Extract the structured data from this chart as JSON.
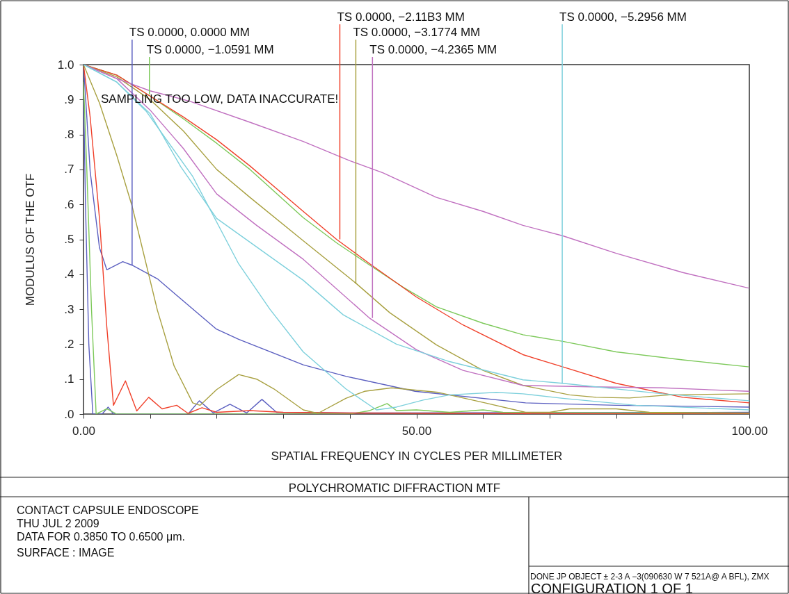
{
  "chart_data": {
    "type": "line",
    "title": "POLYCHROMATIC DIFFRACTION MTF",
    "xlabel": "SPATIAL FREQUENCY IN CYCLES PER MILLIMETER",
    "ylabel": "MODULUS OF THE OTF",
    "xlim": [
      0,
      100
    ],
    "ylim": [
      0,
      1
    ],
    "xticks": [
      {
        "value": 0,
        "label": "0.00"
      },
      {
        "value": 10,
        "label": null
      },
      {
        "value": 20,
        "label": null
      },
      {
        "value": 30,
        "label": null
      },
      {
        "value": 40,
        "label": null
      },
      {
        "value": 50,
        "label": "50.00"
      },
      {
        "value": 60,
        "label": null
      },
      {
        "value": 70,
        "label": null
      },
      {
        "value": 80,
        "label": null
      },
      {
        "value": 90,
        "label": null
      },
      {
        "value": 100,
        "label": "100.00"
      }
    ],
    "yticks": [
      {
        "value": 0,
        "label": ".0"
      },
      {
        "value": 0.1,
        "label": ".1"
      },
      {
        "value": 0.2,
        "label": ".2"
      },
      {
        "value": 0.3,
        "label": ".3"
      },
      {
        "value": 0.4,
        "label": ".4"
      },
      {
        "value": 0.5,
        "label": ".5"
      },
      {
        "value": 0.6,
        "label": ".6"
      },
      {
        "value": 0.7,
        "label": ".7"
      },
      {
        "value": 0.8,
        "label": ".8"
      },
      {
        "value": 0.9,
        "label": ".9"
      },
      {
        "value": 1,
        "label": "1.0"
      }
    ],
    "series": [
      {
        "color": "#5b5fc0",
        "x": [
          0,
          0.5,
          1,
          2.4,
          3.5,
          5.9,
          7.3,
          11.1,
          14.6,
          19.9,
          23.3,
          33,
          39.4,
          49.8,
          66.4,
          80,
          100
        ],
        "values": [
          1,
          0.85,
          0.695,
          0.476,
          0.413,
          0.436,
          0.426,
          0.387,
          0.33,
          0.244,
          0.214,
          0.141,
          0.108,
          0.065,
          0.032,
          0.025,
          0.02
        ]
      },
      {
        "color": "#5b5fc0",
        "x": [
          0,
          0.3,
          0.8,
          1.4,
          2.8,
          3.7,
          4.5,
          15.7,
          17.4,
          19.5,
          22,
          24.5,
          26.8,
          29,
          40,
          100
        ],
        "values": [
          0.93,
          0.6,
          0.2,
          0,
          0,
          0.02,
          0,
          0,
          0.038,
          0.003,
          0.028,
          0.003,
          0.042,
          0.005,
          0.003,
          0.005
        ]
      },
      {
        "color": "#7dc95a",
        "x": [
          0,
          5,
          10,
          15,
          20,
          25,
          33,
          38,
          43,
          48,
          53,
          60,
          66,
          72,
          80,
          90,
          100
        ],
        "values": [
          1,
          0.97,
          0.91,
          0.845,
          0.775,
          0.7,
          0.562,
          0.49,
          0.426,
          0.363,
          0.307,
          0.26,
          0.227,
          0.208,
          0.178,
          0.155,
          0.135
        ]
      },
      {
        "color": "#7dc95a",
        "x": [
          0,
          0.5,
          1.2,
          1.9,
          3.5,
          5,
          40,
          43,
          45.6,
          47,
          50,
          55,
          60,
          63,
          100
        ],
        "values": [
          0.95,
          0.7,
          0.3,
          0,
          0.015,
          0,
          0,
          0.01,
          0.03,
          0.01,
          0.012,
          0.005,
          0.012,
          0.005,
          0.002
        ]
      },
      {
        "color": "#f0402a",
        "x": [
          0,
          5,
          10,
          15,
          20,
          25,
          33,
          38,
          43,
          50,
          57,
          66,
          72,
          80,
          90,
          100
        ],
        "values": [
          1,
          0.97,
          0.91,
          0.85,
          0.785,
          0.71,
          0.58,
          0.5,
          0.43,
          0.335,
          0.255,
          0.17,
          0.135,
          0.088,
          0.048,
          0.032
        ]
      },
      {
        "color": "#f0402a",
        "x": [
          0,
          1,
          2.4,
          3.5,
          4.5,
          6.3,
          8,
          9.8,
          11.8,
          14,
          15.7,
          17.8,
          20,
          25,
          30,
          40,
          60,
          100
        ],
        "values": [
          1,
          0.85,
          0.56,
          0.25,
          0.025,
          0.095,
          0.009,
          0.048,
          0.015,
          0.025,
          0.002,
          0.018,
          0.005,
          0.01,
          0.005,
          0.003,
          0.002,
          0
        ]
      },
      {
        "color": "#a8a040",
        "x": [
          0,
          5,
          10,
          15,
          20,
          25,
          33,
          41,
          46,
          53,
          60,
          66,
          73,
          77,
          82,
          88,
          100
        ],
        "values": [
          1,
          0.965,
          0.9,
          0.81,
          0.7,
          0.62,
          0.496,
          0.373,
          0.29,
          0.198,
          0.125,
          0.082,
          0.055,
          0.048,
          0.046,
          0.055,
          0.058
        ]
      },
      {
        "color": "#a8a040",
        "x": [
          0,
          2.4,
          5,
          7.3,
          11.1,
          13.6,
          16.4,
          17.5,
          20,
          23.3,
          26,
          28.6,
          33,
          35.2,
          39.4,
          42.2,
          46.3,
          53.3,
          60.3,
          66.4,
          70,
          73,
          80,
          85,
          100
        ],
        "values": [
          1,
          0.89,
          0.74,
          0.595,
          0.297,
          0.138,
          0.032,
          0.025,
          0.07,
          0.113,
          0.1,
          0.072,
          0.012,
          0.002,
          0.045,
          0.065,
          0.075,
          0.062,
          0.032,
          0.005,
          0.005,
          0.015,
          0.015,
          0.005,
          0.003
        ]
      },
      {
        "color": "#c070c0",
        "x": [
          0,
          5,
          10,
          15,
          20,
          26,
          33,
          43,
          50,
          57,
          66,
          76,
          87,
          100
        ],
        "values": [
          1,
          0.96,
          0.87,
          0.76,
          0.63,
          0.54,
          0.443,
          0.274,
          0.184,
          0.125,
          0.082,
          0.078,
          0.075,
          0.065
        ]
      },
      {
        "color": "#c070c0",
        "x": [
          0,
          5,
          10,
          16,
          25,
          33,
          40,
          45,
          53,
          60,
          66,
          72,
          80,
          90,
          100
        ],
        "values": [
          1,
          0.96,
          0.925,
          0.895,
          0.835,
          0.78,
          0.725,
          0.69,
          0.62,
          0.58,
          0.54,
          0.51,
          0.46,
          0.405,
          0.36
        ]
      },
      {
        "color": "#7dd0dc",
        "x": [
          0,
          5,
          10,
          14.6,
          20,
          33,
          39,
          47,
          55,
          66,
          72,
          87,
          100
        ],
        "values": [
          1,
          0.95,
          0.86,
          0.708,
          0.56,
          0.383,
          0.284,
          0.2,
          0.15,
          0.098,
          0.088,
          0.058,
          0.038
        ]
      },
      {
        "color": "#7dd0dc",
        "x": [
          0,
          5,
          9.4,
          16.4,
          23.3,
          28,
          33,
          39.4,
          44,
          47,
          51,
          55,
          62,
          66,
          72,
          83,
          100
        ],
        "values": [
          1,
          0.95,
          0.867,
          0.68,
          0.43,
          0.3,
          0.178,
          0.072,
          0.012,
          0.02,
          0.04,
          0.055,
          0.062,
          0.058,
          0.045,
          0.025,
          0.012
        ]
      }
    ],
    "annotations": [
      {
        "text": "TS 0.0000, 0.0000 MM",
        "x": 7.3,
        "y": 0.426
      },
      {
        "text": "TS 0.0000, −1.0591 MM",
        "x": 9.9,
        "y": 0.915
      },
      {
        "text": "TS 0.0000, −2.11B3 MM",
        "x": 38.5,
        "y": 0.5
      },
      {
        "text": "TS 0.0000, −3.1774 MM",
        "x": 40.9,
        "y": 0.373
      },
      {
        "text": "TS 0.0000, −4.2365 MM",
        "x": 43.4,
        "y": 0.275
      },
      {
        "text": "TS 0.0000, −5.2956 MM",
        "x": 71.9,
        "y": 0.087
      },
      "SAMPLING TOO LOW, DATA INACCURATE!",
      "CONTACT CAPSULE ENDOSCOPE",
      "THU JUL 2 2009",
      "DATA FOR 0.3850 TO 0.6500 μm.",
      "SURFACE :     IMAGE",
      "DONE JP OBJECT ± 2-3 A −3(090630 W 7 521A@ A BFL), ZMX",
      "CONFIGURATION 1 OF 1"
    ]
  }
}
